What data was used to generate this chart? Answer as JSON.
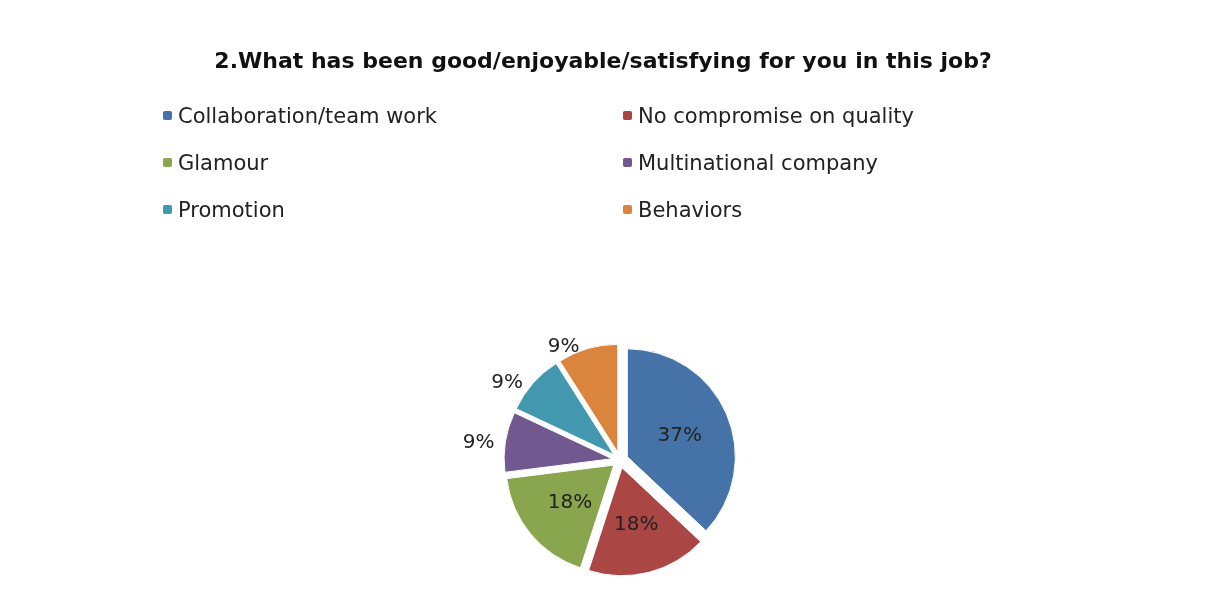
{
  "chart_data": {
    "type": "pie",
    "title": "2.What has been good/enjoyable/satisfying for you in this job?",
    "categories": [
      "Collaboration/team work",
      "No compromise on quality",
      "Glamour",
      "Multinational company",
      "Promotion",
      "Behaviors"
    ],
    "values": [
      37,
      18,
      18,
      9,
      9,
      9
    ],
    "colors": [
      "#4572a7",
      "#aa4643",
      "#89a54e",
      "#71588f",
      "#4198af",
      "#db843d"
    ],
    "value_labels": [
      "37%",
      "18%",
      "18%",
      "9%",
      "9%",
      "9%"
    ],
    "legend": "top"
  }
}
